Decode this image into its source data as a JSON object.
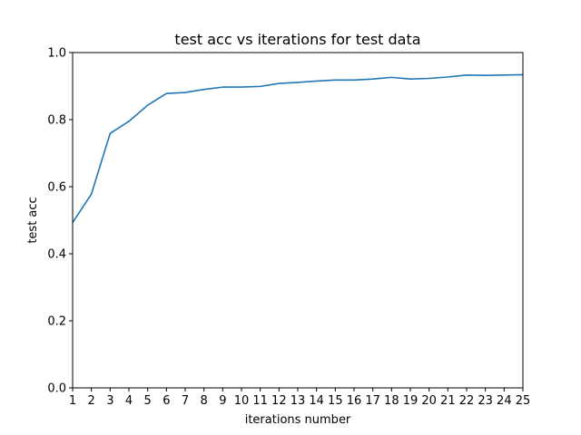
{
  "chart_data": {
    "type": "line",
    "title": "test acc vs iterations for test data",
    "xlabel": "iterations number",
    "ylabel": "test acc",
    "xlim": [
      1,
      25
    ],
    "ylim": [
      0.0,
      1.0
    ],
    "xticks": [
      1,
      2,
      3,
      4,
      5,
      6,
      7,
      8,
      9,
      10,
      11,
      12,
      13,
      14,
      15,
      16,
      17,
      18,
      19,
      20,
      21,
      22,
      23,
      24,
      25
    ],
    "yticks": [
      "0.0",
      "0.2",
      "0.4",
      "0.6",
      "0.8",
      "1.0"
    ],
    "grid": false,
    "series": [
      {
        "color": "#1f77b4",
        "x": [
          1,
          2,
          3,
          4,
          5,
          6,
          7,
          8,
          9,
          10,
          11,
          12,
          13,
          14,
          15,
          16,
          17,
          18,
          19,
          20,
          21,
          22,
          23,
          24,
          25
        ],
        "y": [
          0.493,
          0.578,
          0.759,
          0.795,
          0.843,
          0.878,
          0.881,
          0.89,
          0.897,
          0.897,
          0.899,
          0.908,
          0.911,
          0.915,
          0.918,
          0.918,
          0.921,
          0.926,
          0.921,
          0.923,
          0.927,
          0.933,
          0.932,
          0.933,
          0.934
        ]
      }
    ]
  }
}
